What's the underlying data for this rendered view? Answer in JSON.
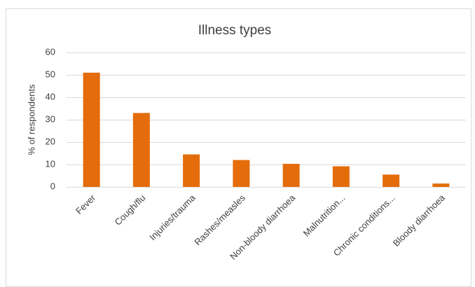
{
  "chart_data": {
    "type": "bar",
    "title": "Illness types",
    "y_label": "% of respondents",
    "categories": [
      "Fever",
      "Cough/flu",
      "Injuries/trauma",
      "Rashes/measles",
      "Non-bloody diarrhoea",
      "Malnutrition...",
      "Chronic conditions...",
      "Bloody diarrhoea"
    ],
    "values": [
      51,
      33,
      14.5,
      12,
      10.3,
      9.2,
      5.5,
      1.5
    ],
    "color": "#e46c0a",
    "ylim": [
      0,
      60
    ],
    "yticks": [
      0,
      10,
      20,
      30,
      40,
      50,
      60
    ],
    "grid": true
  }
}
